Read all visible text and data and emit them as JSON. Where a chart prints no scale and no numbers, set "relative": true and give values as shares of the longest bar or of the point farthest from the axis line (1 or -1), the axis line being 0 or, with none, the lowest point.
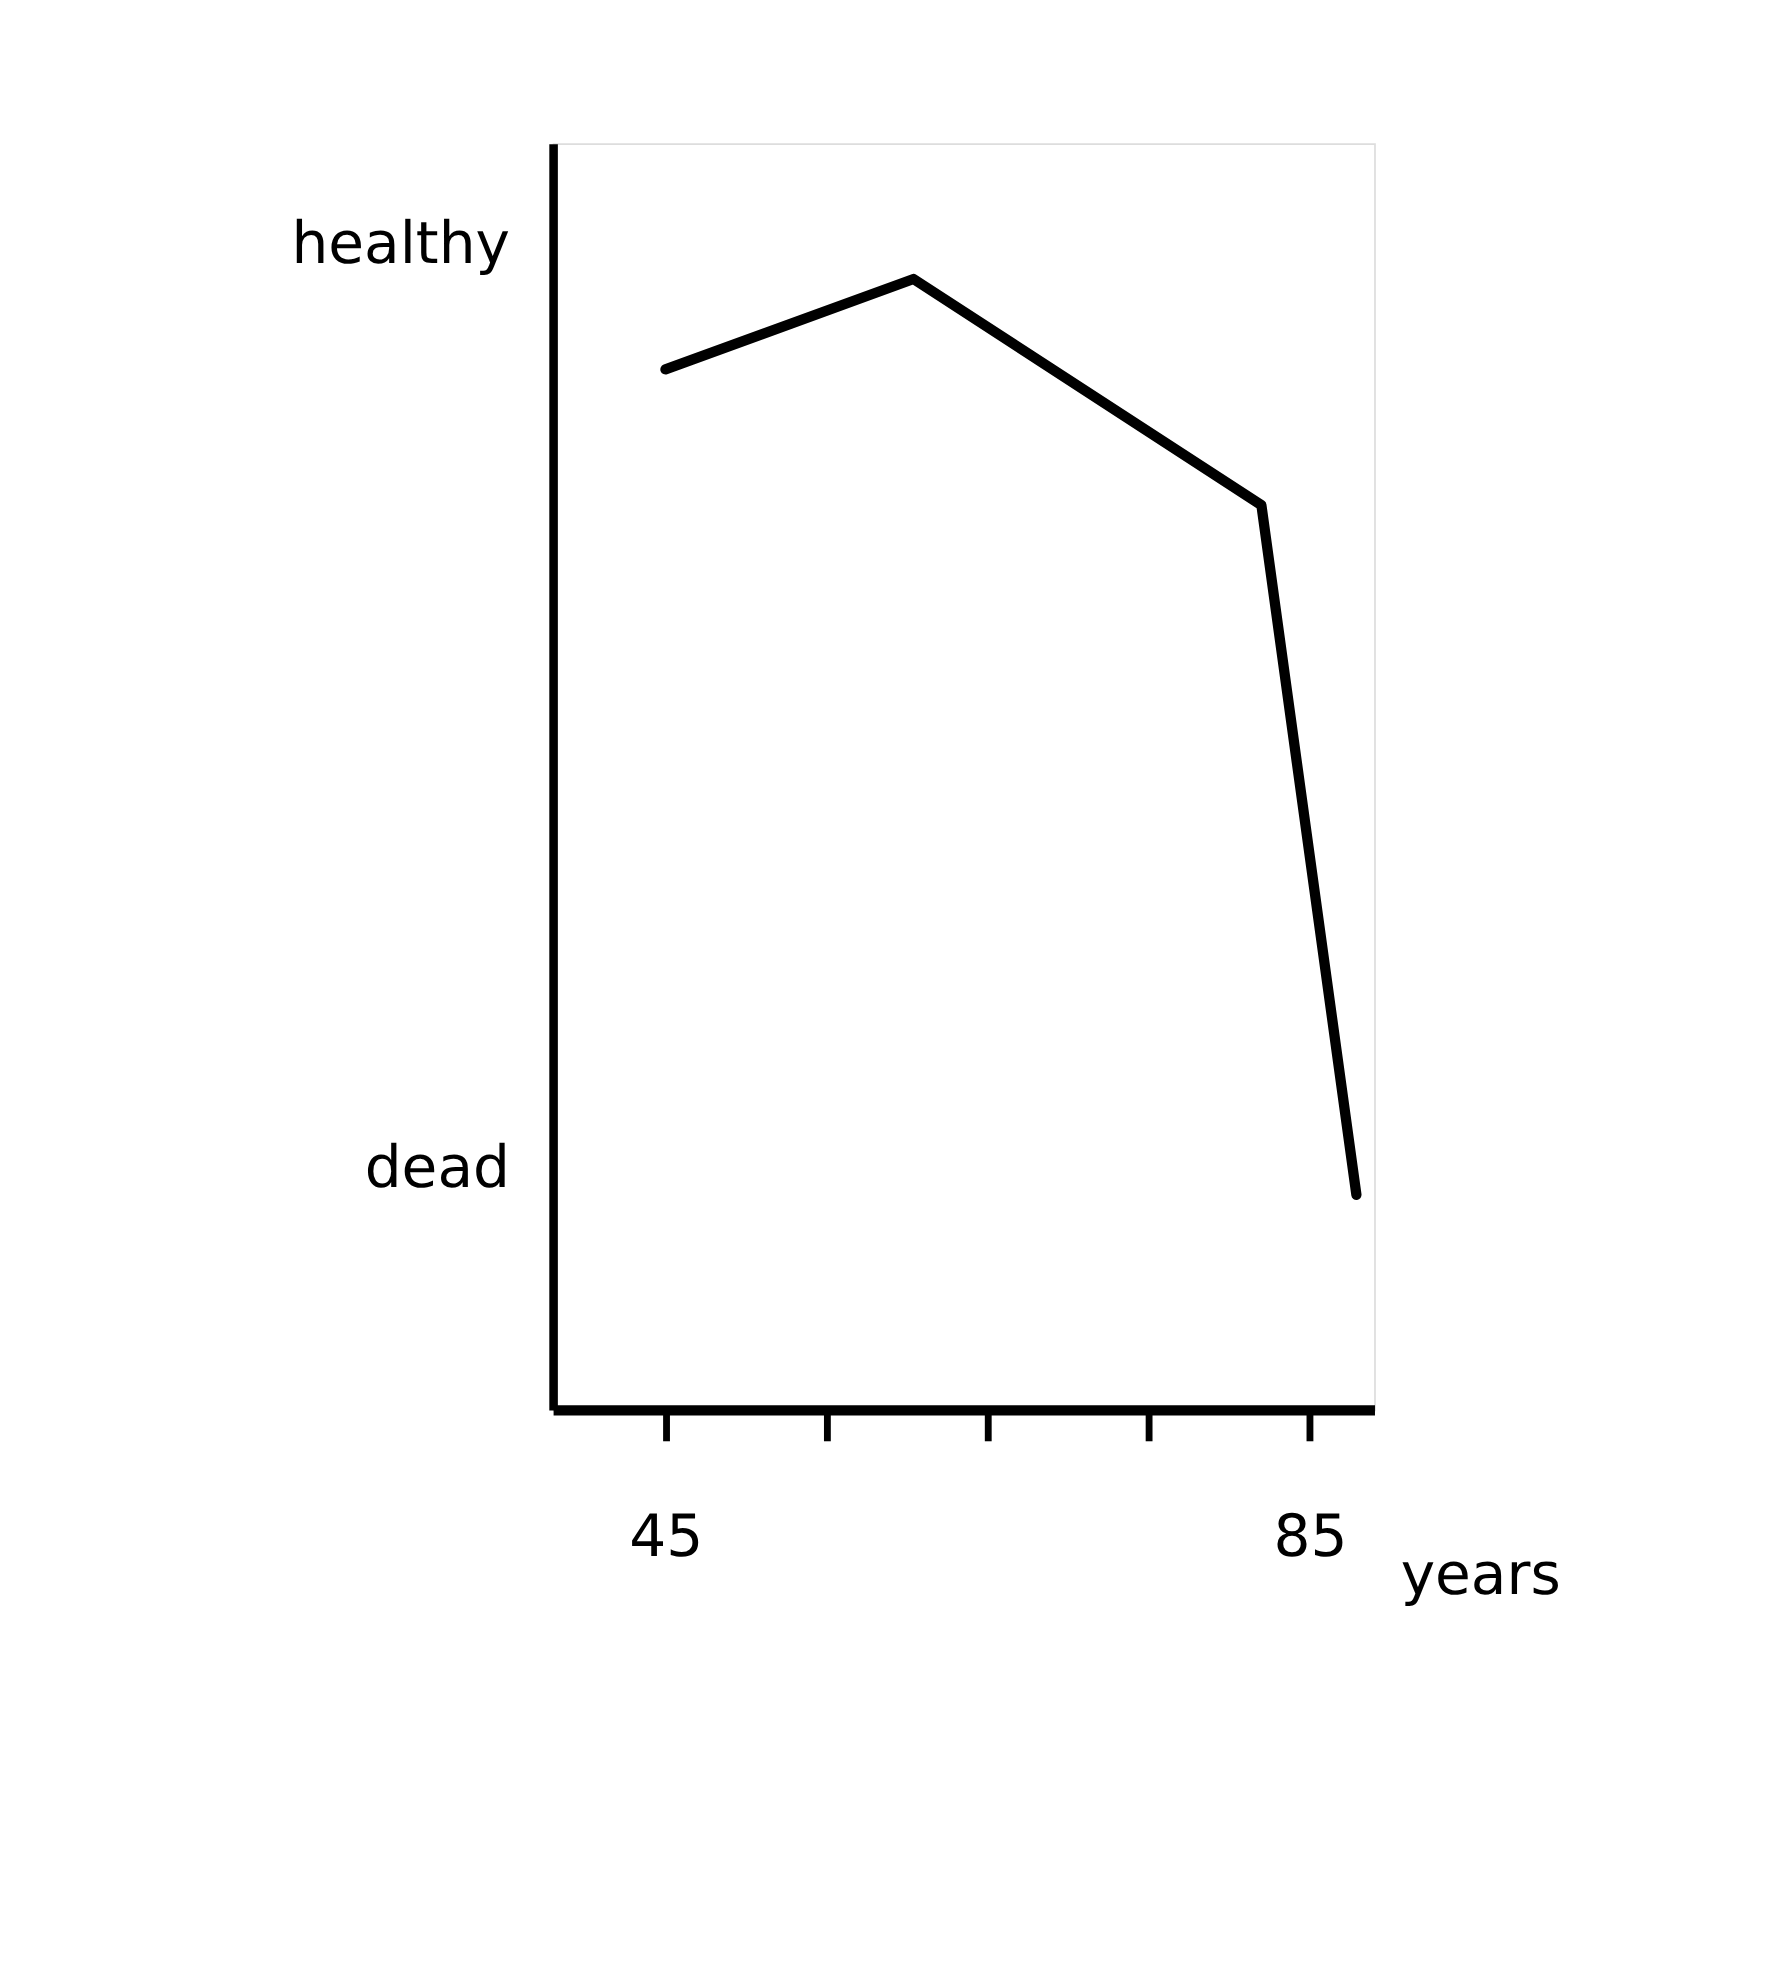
{
  "chart_data": {
    "type": "line",
    "xlabel": "years",
    "relative": true,
    "annotations": [
      "healthy",
      "dead"
    ],
    "x": [
      45,
      60.4,
      82,
      87.9
    ],
    "series": [
      {
        "color": "#000000",
        "values": [
          0.92,
          1,
          0.8,
          0.19
        ]
      }
    ],
    "xlim": [
      38,
      89
    ],
    "xticks": [
      45,
      {
        "value": 55,
        "label": null
      },
      {
        "value": 65,
        "label": null
      },
      {
        "value": 75,
        "label": null
      },
      85
    ],
    "grid": false,
    "legend": false,
    "marker": "none",
    "line_style": "solid"
  }
}
